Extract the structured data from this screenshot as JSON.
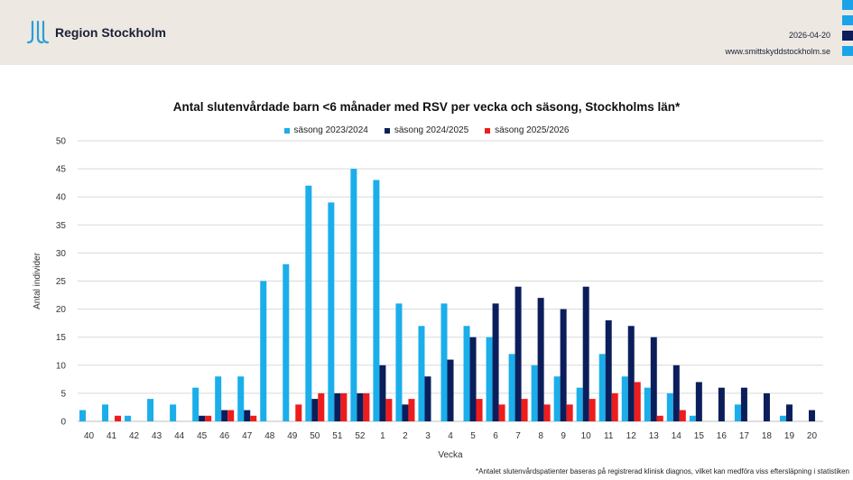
{
  "header": {
    "logo_text": "Region Stockholm",
    "date": "2026-04-20",
    "url": "www.smittskyddstockholm.se",
    "strip_colors": [
      "#1aa3e8",
      "#1aa3e8",
      "#0b1e5b",
      "#1aa3e8"
    ]
  },
  "footnote": "*Antalet slutenvårdspatienter baseras på registrerad klinisk diagnos, vilket kan medföra viss eftersläpning i statistiken",
  "chart_data": {
    "type": "bar",
    "title": "Antal slutenvårdade barn <6 månader med RSV per vecka och säsong, Stockholms län*",
    "xlabel": "Vecka",
    "ylabel": "Antal individer",
    "ylim": [
      0,
      50
    ],
    "yticks": [
      0,
      5,
      10,
      15,
      20,
      25,
      30,
      35,
      40,
      45,
      50
    ],
    "grid": true,
    "legend_position": "top-center",
    "categories": [
      "40",
      "41",
      "42",
      "43",
      "44",
      "45",
      "46",
      "47",
      "48",
      "49",
      "50",
      "51",
      "52",
      "1",
      "2",
      "3",
      "4",
      "5",
      "6",
      "7",
      "8",
      "9",
      "10",
      "11",
      "12",
      "13",
      "14",
      "15",
      "16",
      "17",
      "18",
      "19",
      "20"
    ],
    "series": [
      {
        "name": "säsong 2023/2024",
        "color": "#1aaeea",
        "values": [
          2,
          3,
          1,
          4,
          3,
          6,
          8,
          8,
          25,
          28,
          42,
          39,
          45,
          43,
          21,
          17,
          21,
          17,
          15,
          12,
          10,
          8,
          6,
          12,
          8,
          6,
          5,
          1,
          0,
          3,
          0,
          1,
          0
        ]
      },
      {
        "name": "säsong 2024/2025",
        "color": "#0b1e5b",
        "values": [
          0,
          0,
          0,
          0,
          0,
          1,
          2,
          2,
          0,
          0,
          4,
          5,
          5,
          10,
          3,
          8,
          11,
          15,
          21,
          24,
          22,
          20,
          24,
          18,
          17,
          15,
          10,
          7,
          6,
          6,
          5,
          3,
          2
        ]
      },
      {
        "name": "säsong 2025/2026",
        "color": "#ee1c1c",
        "values": [
          0,
          1,
          0,
          0,
          0,
          1,
          2,
          1,
          0,
          3,
          5,
          5,
          5,
          4,
          4,
          0,
          0,
          4,
          3,
          4,
          3,
          3,
          4,
          5,
          7,
          1,
          2,
          null,
          null,
          null,
          null,
          null,
          null
        ]
      }
    ]
  }
}
